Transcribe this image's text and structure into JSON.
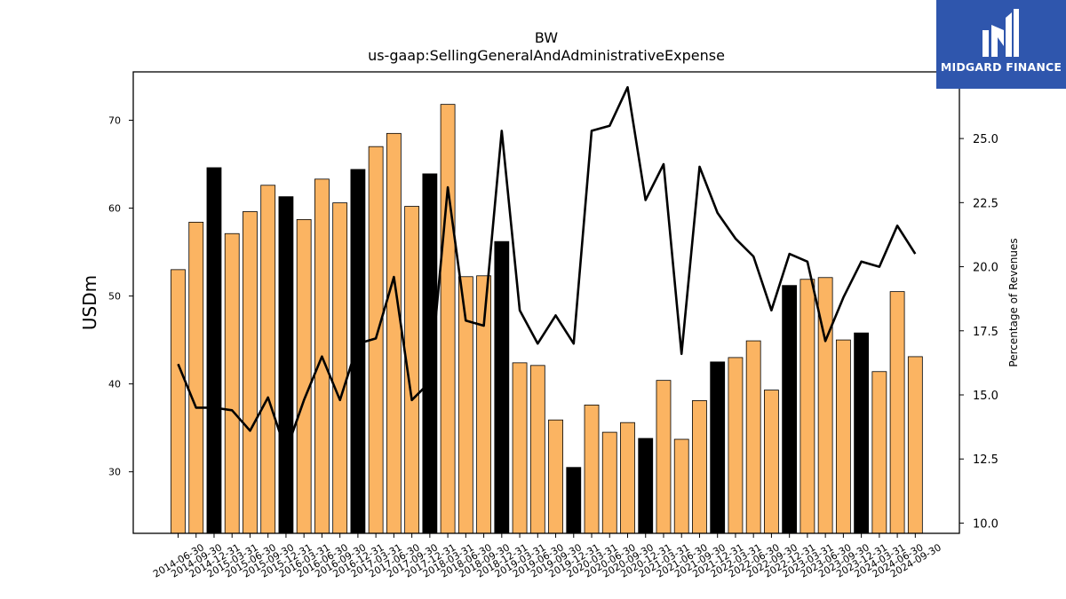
{
  "logo": {
    "text": "MIDGARD FINANCE",
    "icon": "midgard-logo-icon",
    "background": "#2f56ad"
  },
  "chart_data": {
    "type": "bar",
    "title": "BW",
    "subtitle": "us-gaap:SellingGeneralAndAdministrativeExpense",
    "ylabel": "USDm",
    "y2label": "Percentage of Revenues",
    "ylim": [
      23,
      75.5
    ],
    "y2lim": [
      9.6,
      27.6
    ],
    "yticks": [
      30,
      40,
      50,
      60,
      70
    ],
    "y2ticks": [
      "10.0",
      "12.5",
      "15.0",
      "17.5",
      "20.0",
      "22.5",
      "25.0"
    ],
    "bar_color": "#fbb462",
    "highlight_color": "#000000",
    "line_color": "#000000",
    "categories": [
      "2014-06-30",
      "2014-09-30",
      "2014-12-31",
      "2015-03-31",
      "2015-06-30",
      "2015-09-30",
      "2015-12-31",
      "2016-03-31",
      "2016-06-30",
      "2016-09-30",
      "2016-12-31",
      "2017-03-31",
      "2017-06-30",
      "2017-09-30",
      "2017-12-31",
      "2018-03-31",
      "2018-06-30",
      "2018-09-30",
      "2018-12-31",
      "2019-03-31",
      "2019-06-30",
      "2019-09-30",
      "2019-12-31",
      "2020-03-31",
      "2020-06-30",
      "2020-09-30",
      "2020-12-31",
      "2021-03-31",
      "2021-06-30",
      "2021-09-30",
      "2021-12-31",
      "2022-03-31",
      "2022-06-30",
      "2022-09-30",
      "2022-12-31",
      "2023-03-31",
      "2023-06-30",
      "2023-09-30",
      "2023-12-31",
      "2024-03-31",
      "2024-06-30",
      "2024-09-30"
    ],
    "values": [
      53.0,
      58.4,
      64.6,
      57.1,
      59.6,
      62.6,
      61.3,
      58.7,
      63.3,
      60.6,
      64.4,
      67.0,
      68.5,
      60.2,
      63.9,
      71.8,
      52.2,
      52.3,
      56.2,
      42.4,
      42.1,
      35.9,
      30.5,
      37.6,
      34.5,
      35.6,
      33.8,
      40.4,
      33.7,
      38.1,
      42.5,
      43.0,
      44.9,
      39.3,
      51.2,
      51.9,
      52.1,
      45.0,
      45.8,
      41.4,
      50.5,
      43.1
    ],
    "highlight": [
      false,
      false,
      true,
      false,
      false,
      false,
      true,
      false,
      false,
      false,
      true,
      false,
      false,
      false,
      true,
      false,
      false,
      false,
      true,
      false,
      false,
      false,
      true,
      false,
      false,
      false,
      true,
      false,
      false,
      false,
      true,
      false,
      false,
      false,
      true,
      false,
      false,
      false,
      true,
      false,
      false,
      false
    ],
    "line_values": [
      16.2,
      14.5,
      14.5,
      14.4,
      13.6,
      14.9,
      12.8,
      14.8,
      16.5,
      14.8,
      17.0,
      17.2,
      19.6,
      14.8,
      15.5,
      23.1,
      17.9,
      17.7,
      25.3,
      18.3,
      17.0,
      18.1,
      17.0,
      25.3,
      25.5,
      27.0,
      22.6,
      24.0,
      16.6,
      23.9,
      22.1,
      21.1,
      20.4,
      18.3,
      20.5,
      20.2,
      17.1,
      18.8,
      20.2,
      20.0,
      21.6,
      20.5
    ]
  }
}
